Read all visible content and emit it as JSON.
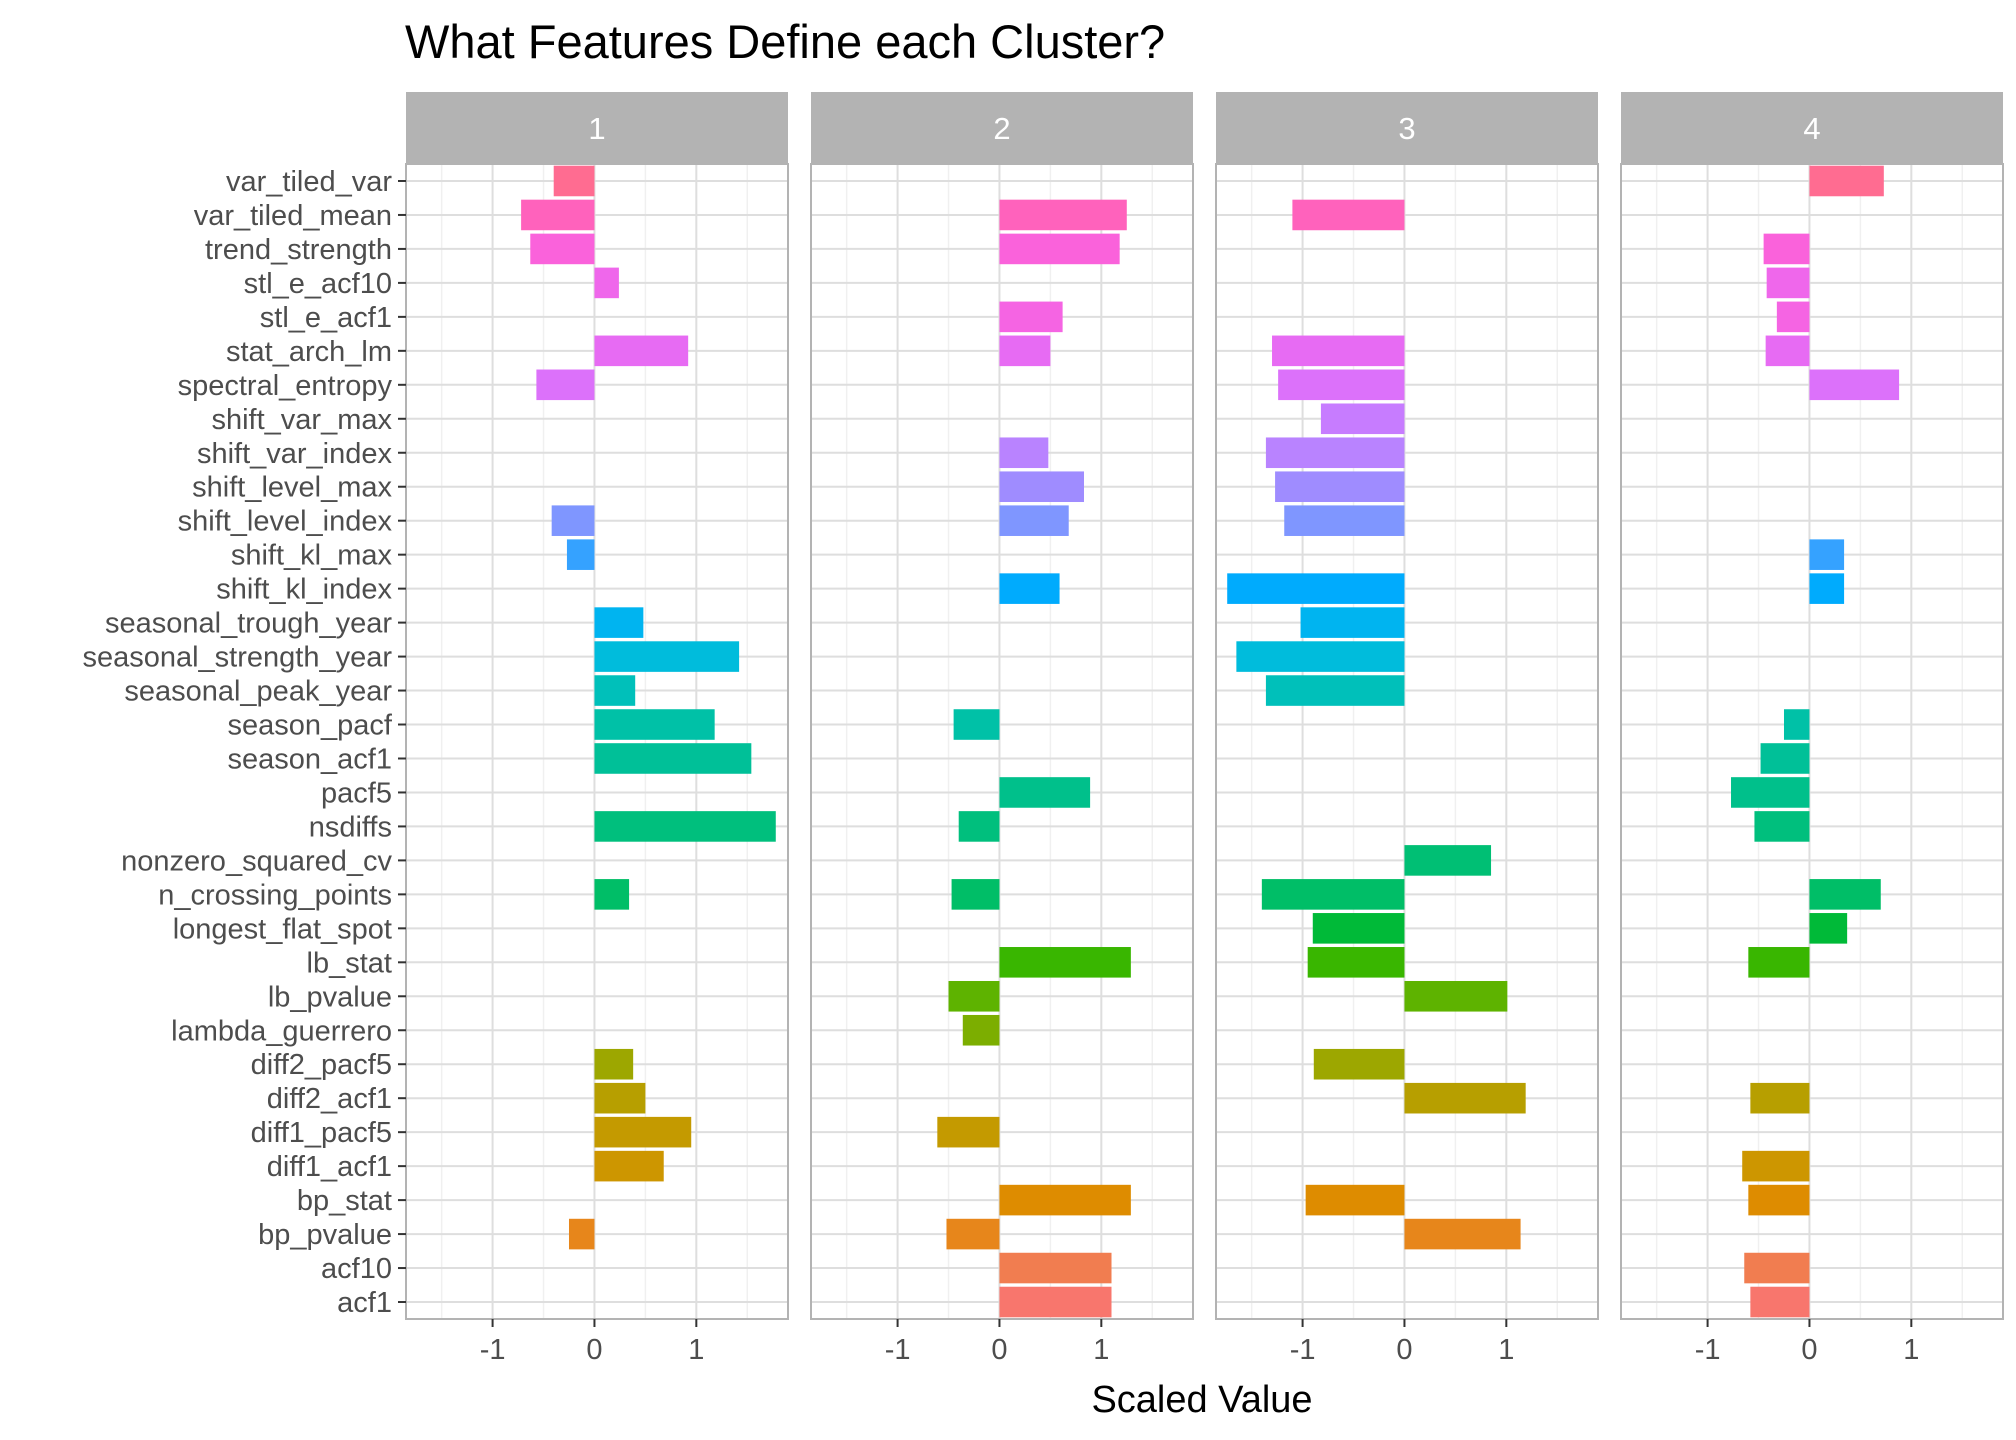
{
  "chart_data": {
    "type": "bar",
    "orientation": "horizontal",
    "faceted": true,
    "title": "What Features Define each Cluster?",
    "xlabel": "Scaled Value",
    "ylabel": "",
    "xlim": [
      -1.85,
      1.9
    ],
    "xticks": [
      -1,
      0,
      1
    ],
    "xtick_labels": [
      "-1",
      "0",
      "1"
    ],
    "grid": true,
    "legend": "none",
    "categories": [
      "var_tiled_var",
      "var_tiled_mean",
      "trend_strength",
      "stl_e_acf10",
      "stl_e_acf1",
      "stat_arch_lm",
      "spectral_entropy",
      "shift_var_max",
      "shift_var_index",
      "shift_level_max",
      "shift_level_index",
      "shift_kl_max",
      "shift_kl_index",
      "seasonal_trough_year",
      "seasonal_strength_year",
      "seasonal_peak_year",
      "season_pacf",
      "season_acf1",
      "pacf5",
      "nsdiffs",
      "nonzero_squared_cv",
      "n_crossing_points",
      "longest_flat_spot",
      "lb_stat",
      "lb_pvalue",
      "lambda_guerrero",
      "diff2_pacf5",
      "diff2_acf1",
      "diff1_pacf5",
      "diff1_acf1",
      "bp_stat",
      "bp_pvalue",
      "acf10",
      "acf1"
    ],
    "category_colors": [
      "#FF6C91",
      "#FF62BC",
      "#FA62DB",
      "#EF67EB",
      "#F564E3",
      "#E76BF3",
      "#DC71FA",
      "#C77CFF",
      "#B983FF",
      "#9F8CFF",
      "#7F96FF",
      "#35A2FF",
      "#00ABFD",
      "#00B4F0",
      "#00BCDC",
      "#00C0BA",
      "#00C1A7",
      "#00C098",
      "#00C08B",
      "#00BF7D",
      "#00BF74",
      "#00BE67",
      "#00BA38",
      "#39B600",
      "#5EB300",
      "#7CAE00",
      "#9DA700",
      "#B79F00",
      "#C49A00",
      "#CD9600",
      "#DE8C00",
      "#E7861B",
      "#F17D50",
      "#F8766D"
    ],
    "facets": [
      {
        "label": "1",
        "values": [
          -0.4,
          -0.72,
          -0.63,
          0.24,
          null,
          0.92,
          -0.57,
          null,
          null,
          null,
          -0.42,
          -0.27,
          null,
          0.48,
          1.42,
          0.4,
          1.18,
          1.54,
          null,
          1.78,
          null,
          0.34,
          null,
          null,
          null,
          null,
          0.38,
          0.5,
          0.95,
          0.68,
          null,
          -0.25,
          null,
          null
        ]
      },
      {
        "label": "2",
        "values": [
          null,
          1.25,
          1.18,
          null,
          0.62,
          0.5,
          null,
          null,
          0.48,
          0.83,
          0.68,
          null,
          0.59,
          null,
          null,
          null,
          -0.45,
          null,
          0.89,
          -0.4,
          null,
          -0.47,
          null,
          1.29,
          -0.5,
          -0.36,
          null,
          null,
          -0.61,
          null,
          1.29,
          -0.52,
          1.1,
          1.1
        ]
      },
      {
        "label": "3",
        "values": [
          null,
          -1.1,
          null,
          null,
          null,
          -1.3,
          -1.24,
          -0.82,
          -1.36,
          -1.27,
          -1.18,
          null,
          -1.74,
          -1.02,
          -1.65,
          -1.36,
          null,
          null,
          null,
          null,
          0.85,
          -1.4,
          -0.9,
          -0.95,
          1.01,
          null,
          -0.89,
          1.19,
          null,
          null,
          -0.97,
          1.14,
          null,
          null
        ]
      },
      {
        "label": "4",
        "values": [
          0.73,
          null,
          -0.45,
          -0.42,
          -0.32,
          -0.43,
          0.88,
          null,
          null,
          null,
          null,
          0.34,
          0.34,
          null,
          null,
          null,
          -0.25,
          -0.48,
          -0.77,
          -0.54,
          null,
          0.7,
          0.37,
          -0.6,
          null,
          null,
          null,
          -0.58,
          null,
          -0.66,
          -0.6,
          null,
          -0.64,
          -0.58
        ]
      }
    ]
  }
}
